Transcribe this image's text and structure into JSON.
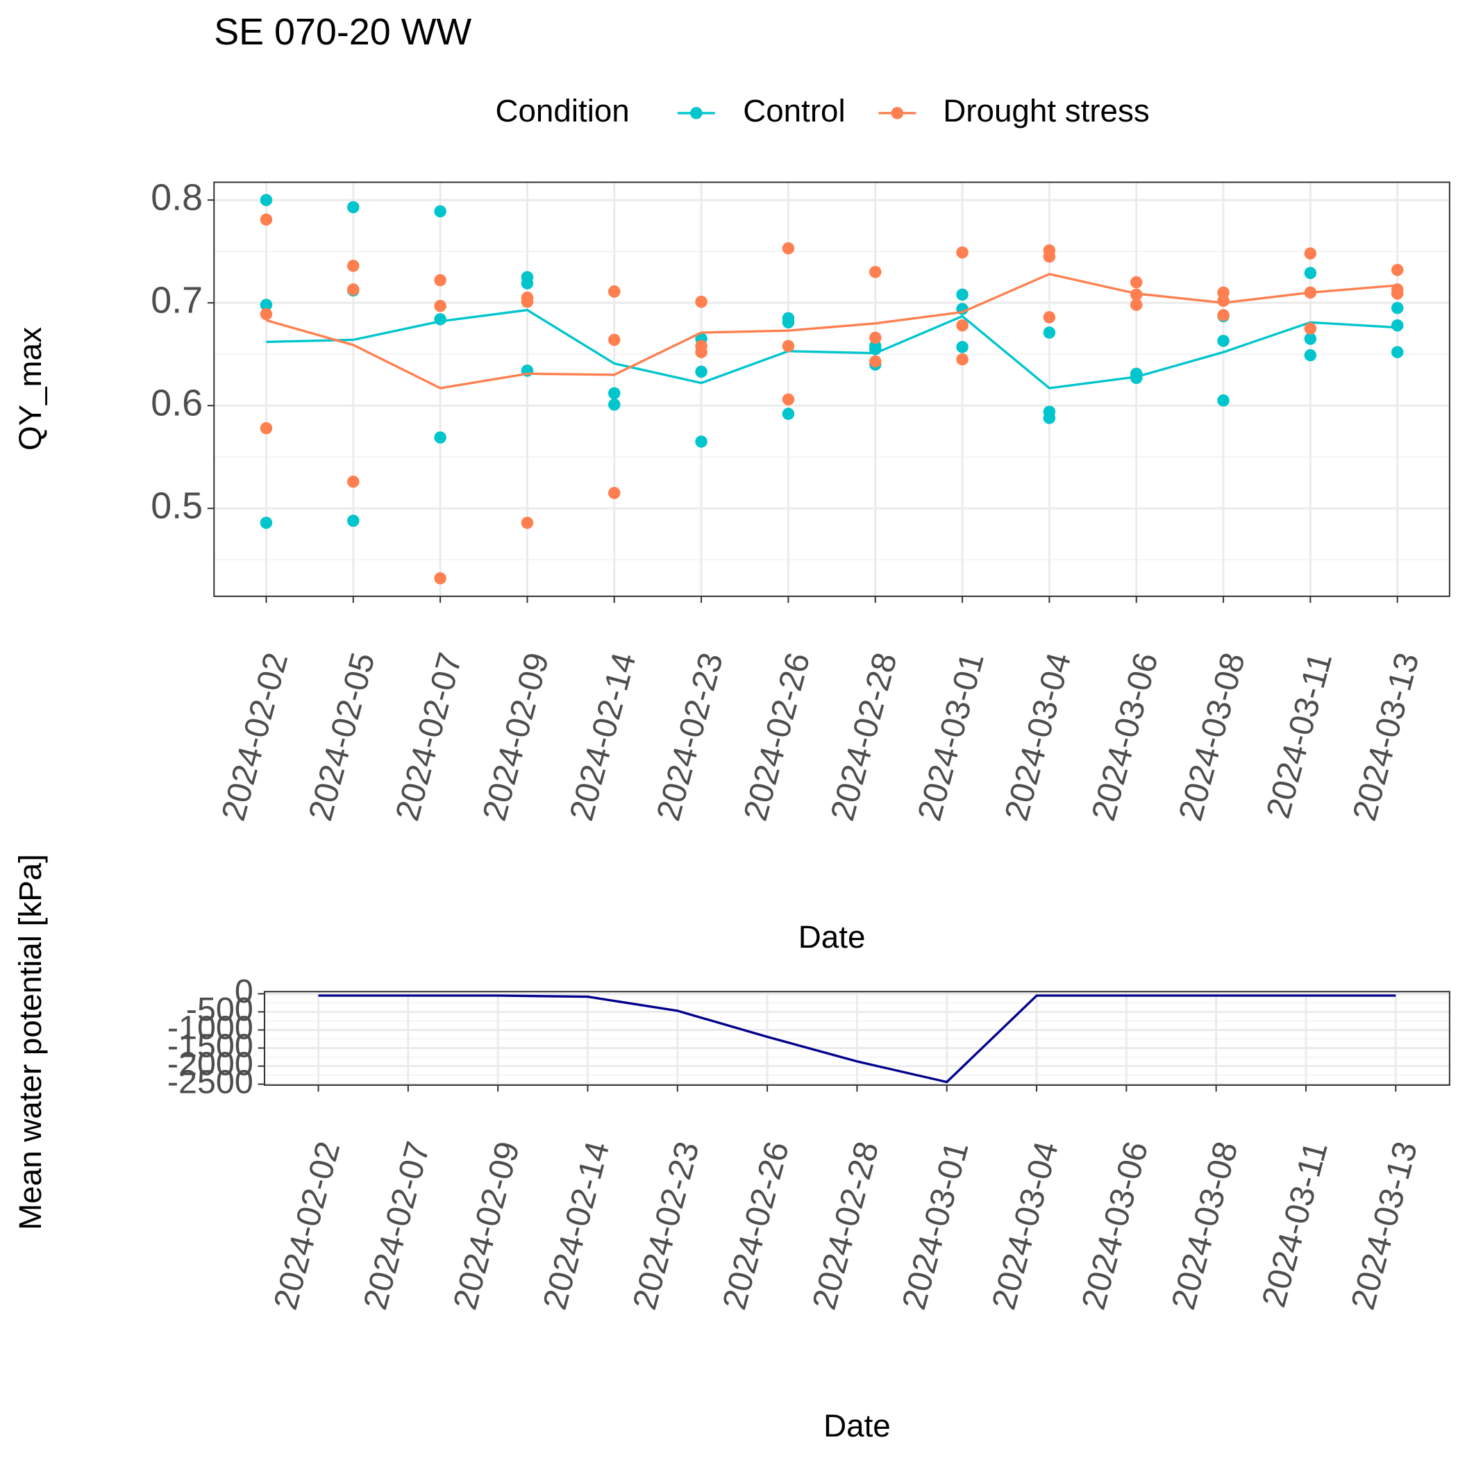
{
  "chart_data": [
    {
      "type": "line",
      "title": "SE 070-20 WW",
      "legend_title": "Condition",
      "x_label": "Date",
      "y_label": "QY_max",
      "categories": [
        "2024-02-02",
        "2024-02-05",
        "2024-02-07",
        "2024-02-09",
        "2024-02-14",
        "2024-02-23",
        "2024-02-26",
        "2024-02-28",
        "2024-03-01",
        "2024-03-04",
        "2024-03-06",
        "2024-03-08",
        "2024-03-11",
        "2024-03-13"
      ],
      "series": [
        {
          "name": "Control",
          "color": "#00c5cd",
          "values": [
            0.662,
            0.664,
            0.682,
            0.693,
            0.641,
            0.622,
            0.653,
            0.651,
            0.687,
            0.617,
            0.628,
            0.652,
            0.681,
            0.676
          ],
          "points": [
            [
              0.8,
              0.698,
              0.486
            ],
            [
              0.793,
              0.712,
              0.488
            ],
            [
              0.789,
              0.684,
              0.569
            ],
            [
              0.725,
              0.719,
              0.634
            ],
            [
              0.612,
              0.601,
              0.711
            ],
            [
              0.665,
              0.633,
              0.565
            ],
            [
              0.685,
              0.681,
              0.592
            ],
            [
              0.658,
              0.64,
              0.655
            ],
            [
              0.708,
              0.694,
              0.657
            ],
            [
              0.671,
              0.594,
              0.588
            ],
            [
              0.631,
              0.627,
              0.627
            ],
            [
              0.687,
              0.663,
              0.605
            ],
            [
              0.729,
              0.665,
              0.649
            ],
            [
              0.695,
              0.678,
              0.652
            ]
          ]
        },
        {
          "name": "Drought stress",
          "color": "#ff7f50",
          "values": [
            0.683,
            0.659,
            0.617,
            0.631,
            0.63,
            0.671,
            0.673,
            0.68,
            0.691,
            0.728,
            0.709,
            0.7,
            0.71,
            0.717
          ],
          "points": [
            [
              0.781,
              0.689,
              0.578
            ],
            [
              0.736,
              0.713,
              0.526
            ],
            [
              0.722,
              0.697,
              0.432
            ],
            [
              0.705,
              0.701,
              0.486
            ],
            [
              0.711,
              0.664,
              0.515
            ],
            [
              0.701,
              0.658,
              0.652
            ],
            [
              0.753,
              0.658,
              0.606
            ],
            [
              0.73,
              0.666,
              0.643
            ],
            [
              0.749,
              0.678,
              0.645
            ],
            [
              0.751,
              0.745,
              0.686
            ],
            [
              0.72,
              0.708,
              0.698
            ],
            [
              0.71,
              0.702,
              0.688
            ],
            [
              0.748,
              0.71,
              0.675
            ],
            [
              0.732,
              0.713,
              0.709
            ]
          ]
        }
      ],
      "ylim": [
        0.4145,
        0.8173
      ],
      "yticks": [
        0.5,
        0.6,
        0.7,
        0.8
      ],
      "grid": true
    },
    {
      "type": "line",
      "x_label": "Date",
      "y_label": "Mean water potential [kPa]",
      "categories": [
        "2024-02-02",
        "2024-02-07",
        "2024-02-09",
        "2024-02-14",
        "2024-02-23",
        "2024-02-26",
        "2024-02-28",
        "2024-03-01",
        "2024-03-04",
        "2024-03-06",
        "2024-03-08",
        "2024-03-11",
        "2024-03-13"
      ],
      "series": [
        {
          "color": "#00008b",
          "values": [
            -50,
            -50,
            -50,
            -80,
            -470,
            -1190,
            -1870,
            -2440,
            -50,
            -50,
            -50,
            -50,
            -50
          ]
        }
      ],
      "ylim": [
        -2525,
        60
      ],
      "yticks": [
        0,
        -500,
        -1000,
        -1500,
        -2000,
        -2500
      ],
      "grid": true
    }
  ]
}
